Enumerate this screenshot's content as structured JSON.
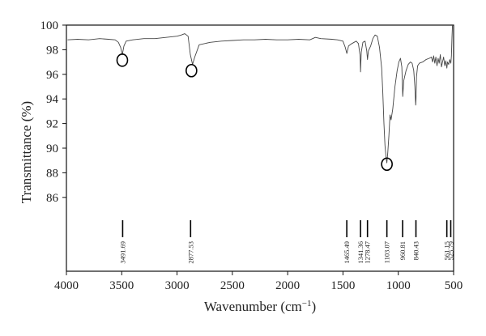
{
  "chart_data": {
    "type": "line",
    "xlabel": "Wavenumber (cm",
    "xlabel_sup": "−1",
    "xlabel_end": ")",
    "ylabel": "Transmittance (%)",
    "xlim": [
      4000,
      500
    ],
    "x_reversed": true,
    "ylim": [
      80,
      100
    ],
    "x_ticks": [
      4000,
      3500,
      3000,
      2500,
      2000,
      1500,
      1000,
      500
    ],
    "x_tick_labels": [
      "4000",
      "3500",
      "3000",
      "2500",
      "2000",
      "1500",
      "1000",
      "500"
    ],
    "y_ticks": [
      86,
      88,
      90,
      92,
      94,
      96,
      98,
      100
    ],
    "y_tick_labels": [
      "86",
      "88",
      "90",
      "92",
      "94",
      "96",
      "98",
      "100"
    ],
    "grid": false,
    "series": [
      {
        "x": [
          3990,
          3900,
          3800,
          3700,
          3620,
          3560,
          3530,
          3510,
          3495,
          3480,
          3460,
          3400,
          3300,
          3200,
          3100,
          3000,
          2960,
          2930,
          2900,
          2880,
          2860,
          2840,
          2800,
          2700,
          2600,
          2500,
          2400,
          2300,
          2200,
          2100,
          2000,
          1900,
          1800,
          1750,
          1700,
          1600,
          1550,
          1500,
          1480,
          1465,
          1450,
          1420,
          1400,
          1380,
          1360,
          1345,
          1341,
          1335,
          1320,
          1300,
          1285,
          1278,
          1270,
          1250,
          1230,
          1210,
          1190,
          1170,
          1150,
          1140,
          1130,
          1120,
          1110,
          1103,
          1095,
          1085,
          1075,
          1065,
          1050,
          1030,
          1010,
          995,
          980,
          968,
          960,
          950,
          930,
          910,
          890,
          875,
          860,
          850,
          843,
          840,
          835,
          825,
          810,
          780,
          750,
          720,
          700,
          690,
          680,
          670,
          660,
          650,
          640,
          630,
          620,
          610,
          600,
          590,
          580,
          570,
          561,
          555,
          545,
          535,
          525,
          520,
          515,
          510
        ],
        "y": [
          98.8,
          98.85,
          98.8,
          98.9,
          98.85,
          98.8,
          98.6,
          98.2,
          97.6,
          98.3,
          98.7,
          98.8,
          98.9,
          98.9,
          99.0,
          99.1,
          99.2,
          99.3,
          99.1,
          97.6,
          96.8,
          97.4,
          98.4,
          98.6,
          98.7,
          98.75,
          98.8,
          98.8,
          98.85,
          98.8,
          98.8,
          98.85,
          98.8,
          99.0,
          98.9,
          98.85,
          98.8,
          98.7,
          98.2,
          97.7,
          98.3,
          98.5,
          98.6,
          98.7,
          98.5,
          97.5,
          96.2,
          97.8,
          98.6,
          98.7,
          97.9,
          97.2,
          97.9,
          98.3,
          98.9,
          99.2,
          99.1,
          98.2,
          96.5,
          94.5,
          92.0,
          90.2,
          89.2,
          88.8,
          89.6,
          91.0,
          92.7,
          92.3,
          93.2,
          95.0,
          96.3,
          97.0,
          97.3,
          96.6,
          94.2,
          95.5,
          96.3,
          96.8,
          97.0,
          96.9,
          96.3,
          95.0,
          93.5,
          94.0,
          95.8,
          96.7,
          96.9,
          97.0,
          97.2,
          97.3,
          97.4,
          97.0,
          97.5,
          96.9,
          97.4,
          96.7,
          97.3,
          96.9,
          97.6,
          96.6,
          97.0,
          97.4,
          96.7,
          97.1,
          96.5,
          97.0,
          96.8,
          97.2,
          96.9,
          97.5,
          99.0,
          100.0
        ]
      }
    ],
    "peaks": [
      {
        "wavenumber": 3491.69,
        "label": "3491.69"
      },
      {
        "wavenumber": 2877.53,
        "label": "2877.53"
      },
      {
        "wavenumber": 1465.49,
        "label": "1465.49"
      },
      {
        "wavenumber": 1341.36,
        "label": "1341.36"
      },
      {
        "wavenumber": 1278.47,
        "label": "1278.47"
      },
      {
        "wavenumber": 1103.07,
        "label": "1103.07"
      },
      {
        "wavenumber": 960.81,
        "label": "960.81"
      },
      {
        "wavenumber": 840.43,
        "label": "840.43"
      },
      {
        "wavenumber": 561.15,
        "label": "561.15"
      },
      {
        "wavenumber": 525.79,
        "label": "525.79"
      }
    ],
    "circled_bands": [
      {
        "x": 3495,
        "y": 97.15
      },
      {
        "x": 2870,
        "y": 96.3
      },
      {
        "x": 1103,
        "y": 88.7
      }
    ],
    "colors": {
      "line": "#444444",
      "axis": "#111111",
      "text": "#222222"
    }
  }
}
